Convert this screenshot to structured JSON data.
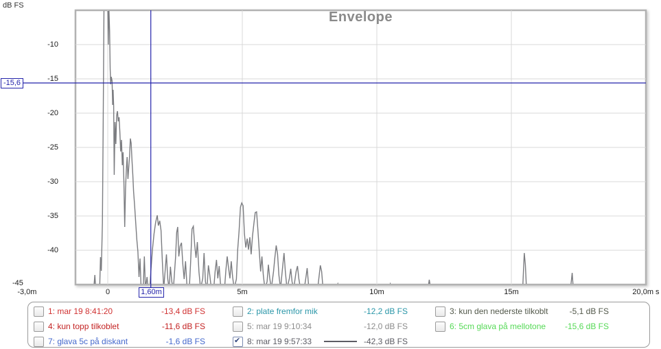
{
  "chart": {
    "title": "Envelope",
    "y_axis_unit": "dB FS",
    "title_color": "#8a8a8a",
    "trace_color": "#7b7c80",
    "grid_color": "#d8d8d8",
    "frame_color": "#b2b2b2",
    "cursor_color": "#2222aa"
  },
  "cursor": {
    "x_label": "1,60m",
    "y_label": "-15,6",
    "x_ms": 1.6,
    "y_db": -15.6
  },
  "chart_data": {
    "type": "line",
    "title": "Envelope",
    "ylabel": "dB FS",
    "x_unit": "s",
    "xlim_ms": [
      -1.2,
      19.9
    ],
    "ylim_db": [
      -45,
      -5
    ],
    "grid": true,
    "x_ticks": [
      {
        "label": "-3,0m",
        "ms": -3.0
      },
      {
        "label": "0",
        "ms": 0
      },
      {
        "label": "5m",
        "ms": 5
      },
      {
        "label": "10m",
        "ms": 10
      },
      {
        "label": "15m",
        "ms": 15
      },
      {
        "label": "20,0m s",
        "ms": 20
      }
    ],
    "x_gridlines_ms": [
      0,
      5,
      10,
      15
    ],
    "y_ticks_db": [
      -10,
      -15,
      -20,
      -25,
      -30,
      -35,
      -40,
      -45
    ],
    "y_gridlines_db": [
      -10,
      -15,
      -20,
      -25,
      -30,
      -35,
      -40
    ],
    "cursor": {
      "x_ms": 1.6,
      "y_db": -15.6
    },
    "series": [
      {
        "name": "8: mar 19 9:57:33",
        "color": "#7b7c80",
        "points_ms_db": [
          [
            -1.2,
            -45.6
          ],
          [
            -0.52,
            -45.6
          ],
          [
            -0.48,
            -43.6
          ],
          [
            -0.45,
            -45.6
          ],
          [
            -0.3,
            -45.6
          ],
          [
            -0.27,
            -41
          ],
          [
            -0.24,
            -43
          ],
          [
            -0.2,
            -36
          ],
          [
            -0.17,
            -22
          ],
          [
            -0.14,
            -4.3
          ],
          [
            0.0,
            -4.3
          ],
          [
            0.02,
            -10
          ],
          [
            0.04,
            -4.5
          ],
          [
            0.07,
            -8
          ],
          [
            0.09,
            -13.5
          ],
          [
            0.11,
            -15.8
          ],
          [
            0.13,
            -14.7
          ],
          [
            0.16,
            -15.3
          ],
          [
            0.18,
            -18.8
          ],
          [
            0.2,
            -16.6
          ],
          [
            0.22,
            -19
          ],
          [
            0.24,
            -29
          ],
          [
            0.27,
            -21.3
          ],
          [
            0.3,
            -24.5
          ],
          [
            0.33,
            -20.4
          ],
          [
            0.36,
            -19.7
          ],
          [
            0.39,
            -21.2
          ],
          [
            0.42,
            -20.6
          ],
          [
            0.45,
            -22.7
          ],
          [
            0.48,
            -25.6
          ],
          [
            0.51,
            -23.9
          ],
          [
            0.54,
            -27.6
          ],
          [
            0.57,
            -25.7
          ],
          [
            0.6,
            -30
          ],
          [
            0.63,
            -36.6
          ],
          [
            0.66,
            -31
          ],
          [
            0.69,
            -28.3
          ],
          [
            0.72,
            -26.4
          ],
          [
            0.75,
            -29.6
          ],
          [
            0.78,
            -27.9
          ],
          [
            0.81,
            -26.2
          ],
          [
            0.84,
            -23.7
          ],
          [
            0.87,
            -24.4
          ],
          [
            0.9,
            -26.9
          ],
          [
            0.93,
            -29
          ],
          [
            0.96,
            -31.4
          ],
          [
            1.0,
            -33.6
          ],
          [
            1.04,
            -36.1
          ],
          [
            1.08,
            -38.4
          ],
          [
            1.12,
            -40.2
          ],
          [
            1.16,
            -43.9
          ],
          [
            1.2,
            -41.2
          ],
          [
            1.24,
            -45.6
          ],
          [
            1.32,
            -45.6
          ],
          [
            1.36,
            -40.9
          ],
          [
            1.4,
            -45.6
          ],
          [
            1.46,
            -43.9
          ],
          [
            1.5,
            -45.6
          ],
          [
            1.56,
            -45.6
          ],
          [
            1.6,
            -43.2
          ],
          [
            1.66,
            -39.9
          ],
          [
            1.72,
            -37.6
          ],
          [
            1.78,
            -35.9
          ],
          [
            1.84,
            -34.9
          ],
          [
            1.88,
            -36.4
          ],
          [
            1.93,
            -35.7
          ],
          [
            1.98,
            -37.1
          ],
          [
            2.03,
            -41.8
          ],
          [
            2.08,
            -45.6
          ],
          [
            2.13,
            -43.1
          ],
          [
            2.18,
            -40.6
          ],
          [
            2.23,
            -44.2
          ],
          [
            2.28,
            -45.6
          ],
          [
            2.33,
            -42.4
          ],
          [
            2.38,
            -44.6
          ],
          [
            2.44,
            -45.6
          ],
          [
            2.52,
            -41
          ],
          [
            2.56,
            -37.4
          ],
          [
            2.6,
            -36.6
          ],
          [
            2.64,
            -40.9
          ],
          [
            2.69,
            -39.4
          ],
          [
            2.74,
            -38.9
          ],
          [
            2.79,
            -42.1
          ],
          [
            2.84,
            -44.2
          ],
          [
            2.89,
            -41.6
          ],
          [
            2.95,
            -45.6
          ],
          [
            3.03,
            -45.6
          ],
          [
            3.08,
            -41.8
          ],
          [
            3.13,
            -36.9
          ],
          [
            3.18,
            -36.5
          ],
          [
            3.23,
            -39.2
          ],
          [
            3.28,
            -41.1
          ],
          [
            3.33,
            -38.8
          ],
          [
            3.39,
            -43.2
          ],
          [
            3.45,
            -45.6
          ],
          [
            3.53,
            -44.1
          ],
          [
            3.58,
            -40.4
          ],
          [
            3.63,
            -44.6
          ],
          [
            3.69,
            -45.6
          ],
          [
            3.74,
            -42.2
          ],
          [
            3.79,
            -43.6
          ],
          [
            3.85,
            -45.6
          ],
          [
            3.94,
            -45.6
          ],
          [
            3.99,
            -43.1
          ],
          [
            4.04,
            -41.4
          ],
          [
            4.09,
            -44.1
          ],
          [
            4.14,
            -42.3
          ],
          [
            4.19,
            -44.9
          ],
          [
            4.25,
            -45.6
          ],
          [
            4.34,
            -45.6
          ],
          [
            4.39,
            -42.9
          ],
          [
            4.44,
            -40.9
          ],
          [
            4.49,
            -42.6
          ],
          [
            4.54,
            -44.1
          ],
          [
            4.59,
            -41.6
          ],
          [
            4.64,
            -43.9
          ],
          [
            4.7,
            -45.6
          ],
          [
            4.78,
            -44.2
          ],
          [
            4.83,
            -39.9
          ],
          [
            4.88,
            -37.2
          ],
          [
            4.93,
            -33.7
          ],
          [
            4.98,
            -33.1
          ],
          [
            5.03,
            -33.5
          ],
          [
            5.08,
            -37.6
          ],
          [
            5.13,
            -39.6
          ],
          [
            5.18,
            -38.3
          ],
          [
            5.23,
            -39.9
          ],
          [
            5.28,
            -38.1
          ],
          [
            5.33,
            -40.6
          ],
          [
            5.38,
            -37.9
          ],
          [
            5.43,
            -36.1
          ],
          [
            5.48,
            -34.5
          ],
          [
            5.53,
            -34.4
          ],
          [
            5.58,
            -37
          ],
          [
            5.63,
            -40.1
          ],
          [
            5.68,
            -43.1
          ],
          [
            5.73,
            -40.9
          ],
          [
            5.78,
            -43.6
          ],
          [
            5.84,
            -45.6
          ],
          [
            5.92,
            -44.6
          ],
          [
            5.97,
            -42.1
          ],
          [
            6.02,
            -44.1
          ],
          [
            6.08,
            -45.6
          ],
          [
            6.16,
            -43.1
          ],
          [
            6.21,
            -41.1
          ],
          [
            6.26,
            -39.3
          ],
          [
            6.31,
            -40.6
          ],
          [
            6.36,
            -43.6
          ],
          [
            6.42,
            -45.6
          ],
          [
            6.5,
            -42.4
          ],
          [
            6.55,
            -40.4
          ],
          [
            6.6,
            -43.1
          ],
          [
            6.66,
            -45.6
          ],
          [
            6.75,
            -44.1
          ],
          [
            6.8,
            -42.7
          ],
          [
            6.85,
            -44.6
          ],
          [
            6.91,
            -45.6
          ],
          [
            7.0,
            -43.1
          ],
          [
            7.05,
            -42.3
          ],
          [
            7.1,
            -44.1
          ],
          [
            7.16,
            -45.6
          ],
          [
            7.3,
            -45.6
          ],
          [
            7.36,
            -44.1
          ],
          [
            7.41,
            -42.6
          ],
          [
            7.46,
            -44.9
          ],
          [
            7.52,
            -45.6
          ],
          [
            7.8,
            -45.6
          ],
          [
            7.86,
            -43.6
          ],
          [
            7.9,
            -42.2
          ],
          [
            7.95,
            -43.1
          ],
          [
            8.0,
            -45.6
          ],
          [
            8.5,
            -45.6
          ],
          [
            8.55,
            -44.9
          ],
          [
            8.6,
            -45.6
          ],
          [
            10.45,
            -45.6
          ],
          [
            10.5,
            -44.9
          ],
          [
            10.55,
            -45.6
          ],
          [
            11.9,
            -45.6
          ],
          [
            11.95,
            -44.3
          ],
          [
            12.0,
            -45.6
          ],
          [
            15.42,
            -45.6
          ],
          [
            15.48,
            -40.4
          ],
          [
            15.52,
            -42.1
          ],
          [
            15.56,
            -45.6
          ],
          [
            17.2,
            -45.6
          ],
          [
            17.26,
            -43.3
          ],
          [
            17.3,
            -45.6
          ],
          [
            19.9,
            -45.6
          ]
        ]
      }
    ]
  },
  "legend": {
    "entries": [
      {
        "id": "1",
        "label": "1: mar 19 8:41:20",
        "value": "-13,4 dB FS",
        "color": "#d03232",
        "checked": false,
        "line_sample": false,
        "col": 0,
        "row": 0
      },
      {
        "id": "4",
        "label": "4: kun topp tilkoblet",
        "value": "-11,6 dB FS",
        "color": "#c32222",
        "checked": false,
        "line_sample": false,
        "col": 0,
        "row": 1
      },
      {
        "id": "7",
        "label": "7: glava 5c på diskant",
        "value": "-1,6 dB FS",
        "color": "#4468cc",
        "checked": false,
        "line_sample": false,
        "col": 0,
        "row": 2
      },
      {
        "id": "2",
        "label": "2: plate fremfor mik",
        "value": "-12,2 dB FS",
        "color": "#2a96a8",
        "checked": false,
        "line_sample": false,
        "col": 1,
        "row": 0
      },
      {
        "id": "5",
        "label": "5: mar 19 9:10:34",
        "value": "-12,0 dB FS",
        "color": "#8c8c8c",
        "checked": false,
        "line_sample": false,
        "col": 1,
        "row": 1
      },
      {
        "id": "8",
        "label": "8: mar 19 9:57:33",
        "value": "-42,3 dB FS",
        "color": "#5c5c64",
        "checked": true,
        "line_sample": true,
        "col": 1,
        "row": 2
      },
      {
        "id": "3",
        "label": "3: kun den nederste tilkoblt",
        "value": "-5,1 dB FS",
        "color": "#52584a",
        "checked": false,
        "line_sample": false,
        "col": 2,
        "row": 0
      },
      {
        "id": "6",
        "label": "6: 5cm glava på mellotone",
        "value": "-15,6 dB FS",
        "color": "#55d956",
        "checked": false,
        "line_sample": false,
        "col": 2,
        "row": 1
      }
    ]
  }
}
